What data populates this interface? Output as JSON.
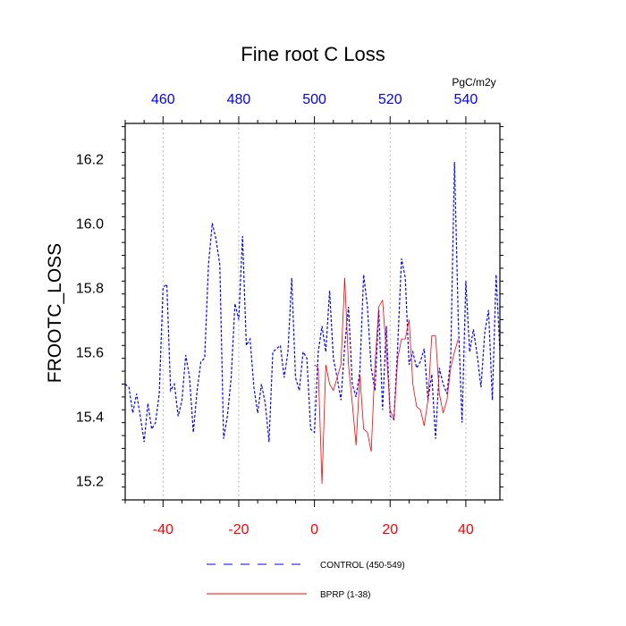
{
  "chart_data": {
    "type": "line",
    "title": "Fine root C Loss",
    "ylabel": "FROOTC_LOSS",
    "xlabel": "",
    "top_axis_unit": "PgC/m2y",
    "xlim": [
      -50,
      49
    ],
    "ylim": [
      15.14,
      16.31
    ],
    "top_axis": {
      "offset": 500,
      "tick_values": [
        460,
        480,
        500,
        520,
        540
      ],
      "color": "#0000ff"
    },
    "bottom_axis": {
      "tick_values": [
        -40,
        -20,
        0,
        20,
        40
      ],
      "color": "#ff0000"
    },
    "y_ticks": [
      15.2,
      15.4,
      15.6,
      15.8,
      16.0,
      16.2
    ],
    "y_tick_labels": [
      "15.2",
      "15.4",
      "15.6",
      "15.8",
      "16.0",
      "16.2"
    ],
    "grid": "vertical dotted at major x ticks",
    "legend_position": "bottom",
    "series": [
      {
        "name": "CONTROL (450-549)",
        "color": "#0000ff",
        "style": "dashed",
        "x_start": -50,
        "values": [
          15.5,
          15.49,
          15.41,
          15.47,
          15.4,
          15.32,
          15.44,
          15.36,
          15.38,
          15.47,
          15.8,
          15.81,
          15.48,
          15.5,
          15.4,
          15.45,
          15.59,
          15.52,
          15.35,
          15.48,
          15.57,
          15.58,
          15.87,
          16.0,
          15.95,
          15.87,
          15.33,
          15.4,
          15.52,
          15.75,
          15.7,
          15.96,
          15.62,
          15.64,
          15.49,
          15.41,
          15.5,
          15.44,
          15.32,
          15.6,
          15.61,
          15.62,
          15.52,
          15.6,
          15.83,
          15.52,
          15.48,
          15.6,
          15.58,
          15.36,
          15.35,
          15.6,
          15.68,
          15.6,
          15.79,
          15.58,
          15.52,
          15.45,
          15.62,
          15.74,
          15.5,
          15.46,
          15.54,
          15.84,
          15.74,
          15.55,
          15.48,
          15.73,
          15.42,
          15.68,
          15.4,
          15.39,
          15.62,
          15.89,
          15.83,
          15.56,
          15.6,
          15.55,
          15.57,
          15.61,
          15.45,
          15.53,
          15.33,
          15.55,
          15.5,
          15.47,
          15.58,
          16.19,
          15.7,
          15.38,
          15.82,
          15.6,
          15.67,
          15.59,
          15.49,
          15.66,
          15.73,
          15.45,
          15.84,
          15.6
        ]
      },
      {
        "name": "BPRP (1-38)",
        "color": "#ff0000",
        "style": "solid",
        "x_start": 0,
        "values": [
          15.56,
          15.55,
          15.19,
          15.56,
          15.5,
          15.48,
          15.52,
          15.56,
          15.83,
          15.56,
          15.44,
          15.31,
          15.53,
          15.36,
          15.35,
          15.29,
          15.56,
          15.74,
          15.76,
          15.6,
          15.42,
          15.39,
          15.58,
          15.64,
          15.64,
          15.7,
          15.5,
          15.43,
          15.42,
          15.37,
          15.45,
          15.65,
          15.65,
          15.47,
          15.41,
          15.45,
          15.55,
          15.6,
          15.64
        ]
      }
    ]
  }
}
